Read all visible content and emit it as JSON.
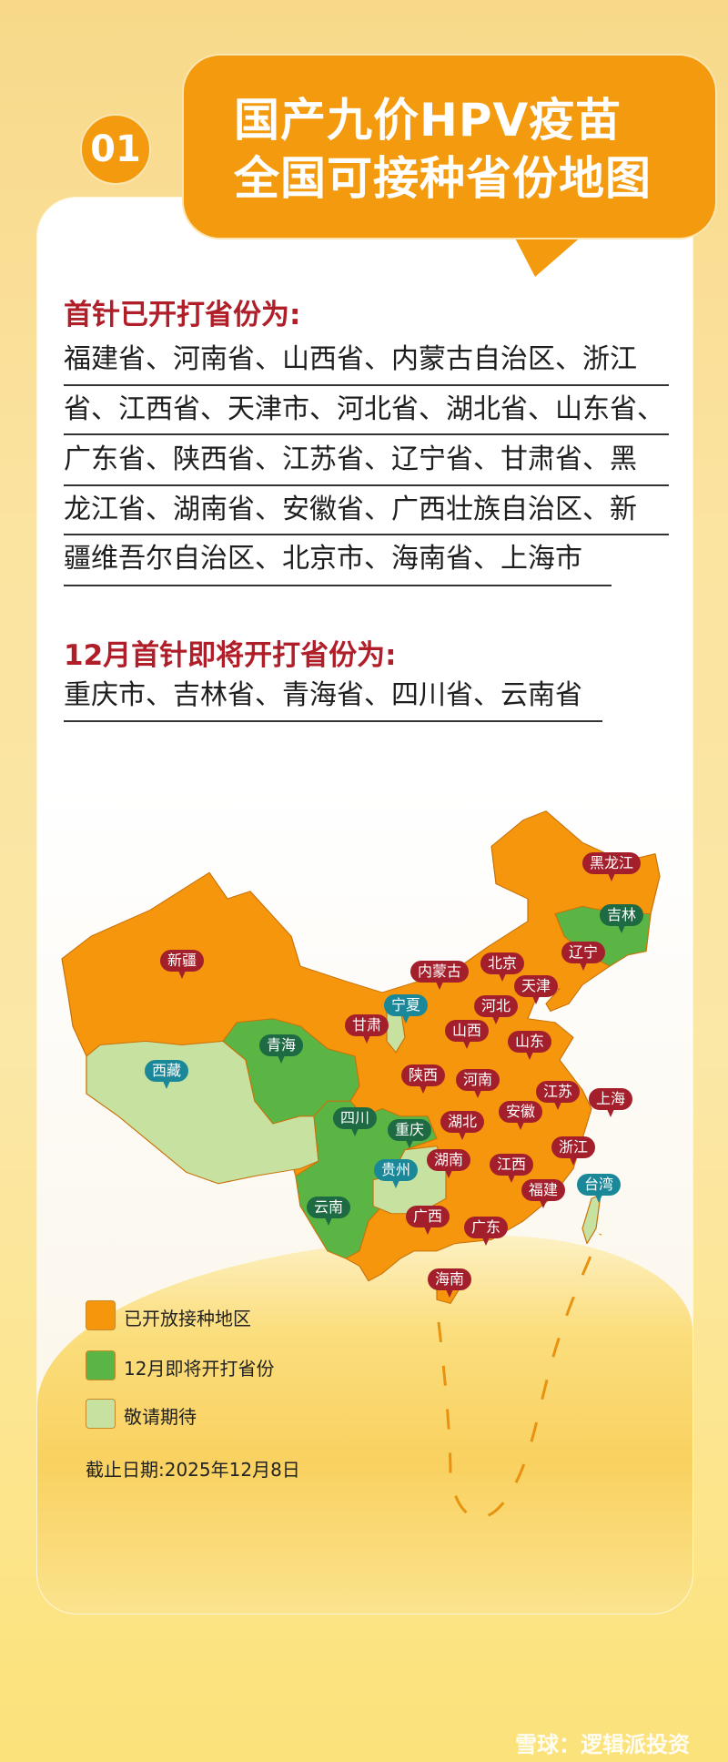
{
  "header": {
    "number": "01",
    "title_line1": "国产九价HPV疫苗",
    "title_line2": "全国可接种省份地图"
  },
  "opened": {
    "heading": "首针已开打省份为:",
    "lines": [
      "福建省、河南省、山西省、内蒙古自治区、浙江",
      "省、江西省、天津市、河北省、湖北省、山东省、",
      "广东省、陕西省、江苏省、辽宁省、甘肃省、黑",
      "龙江省、湖南省、安徽省、广西壮族自治区、新",
      "疆维吾尔自治区、北京市、海南省、上海市"
    ]
  },
  "december": {
    "heading": "12月首针即将开打省份为:",
    "lines": [
      "重庆市、吉林省、青海省、四川省、云南省"
    ]
  },
  "colors": {
    "opened": "#f5960c",
    "december": "#5bb544",
    "pending": "#c6e1a0",
    "heading": "#b01e2a"
  },
  "map": {
    "labels": [
      {
        "name": "黑龙江",
        "status": "opened"
      },
      {
        "name": "吉林",
        "status": "december"
      },
      {
        "name": "辽宁",
        "status": "opened"
      },
      {
        "name": "新疆",
        "status": "opened"
      },
      {
        "name": "内蒙古",
        "status": "opened"
      },
      {
        "name": "北京",
        "status": "opened"
      },
      {
        "name": "天津",
        "status": "opened"
      },
      {
        "name": "宁夏",
        "status": "pending"
      },
      {
        "name": "河北",
        "status": "opened"
      },
      {
        "name": "甘肃",
        "status": "opened"
      },
      {
        "name": "山西",
        "status": "opened"
      },
      {
        "name": "山东",
        "status": "opened"
      },
      {
        "name": "青海",
        "status": "december"
      },
      {
        "name": "西藏",
        "status": "pending"
      },
      {
        "name": "陕西",
        "status": "opened"
      },
      {
        "name": "河南",
        "status": "opened"
      },
      {
        "name": "江苏",
        "status": "opened"
      },
      {
        "name": "上海",
        "status": "opened"
      },
      {
        "name": "安徽",
        "status": "opened"
      },
      {
        "name": "四川",
        "status": "december"
      },
      {
        "name": "湖北",
        "status": "opened"
      },
      {
        "name": "重庆",
        "status": "december"
      },
      {
        "name": "浙江",
        "status": "opened"
      },
      {
        "name": "湖南",
        "status": "opened"
      },
      {
        "name": "江西",
        "status": "opened"
      },
      {
        "name": "贵州",
        "status": "pending"
      },
      {
        "name": "台湾",
        "status": "pending"
      },
      {
        "name": "福建",
        "status": "opened"
      },
      {
        "name": "云南",
        "status": "december"
      },
      {
        "name": "广西",
        "status": "opened"
      },
      {
        "name": "广东",
        "status": "opened"
      },
      {
        "name": "海南",
        "status": "opened"
      }
    ]
  },
  "legend": [
    {
      "label": "已开放接种地区",
      "color": "#f5960c"
    },
    {
      "label": "12月即将开打省份",
      "color": "#5bb544"
    },
    {
      "label": "敬请期待",
      "color": "#c6e1a0"
    }
  ],
  "cutoff_date": "截止日期:2025年12月8日",
  "watermark": "雪球：逻辑派投资"
}
